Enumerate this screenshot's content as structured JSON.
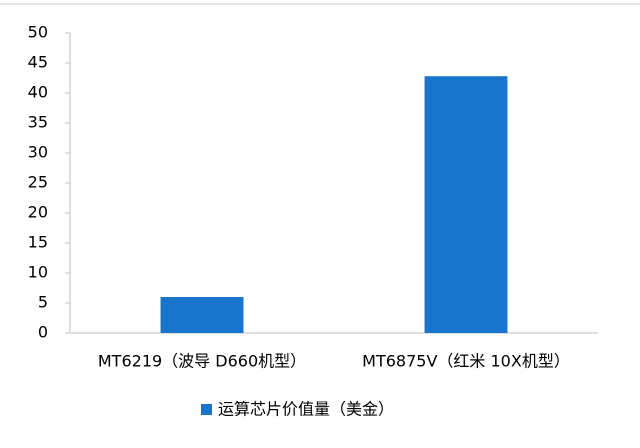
{
  "chart_data": {
    "type": "bar",
    "categories": [
      "MT6219（波导 D660机型）",
      "MT6875V（红米 10X机型）"
    ],
    "series": [
      {
        "name": "运算芯片价值量（美金）",
        "color": "#1874cd",
        "values": [
          6,
          42.8
        ]
      }
    ],
    "ylim": [
      0,
      50
    ],
    "yticks": [
      0,
      5,
      10,
      15,
      20,
      25,
      30,
      35,
      40,
      45,
      50
    ],
    "grid": false,
    "legend": "bottom"
  }
}
